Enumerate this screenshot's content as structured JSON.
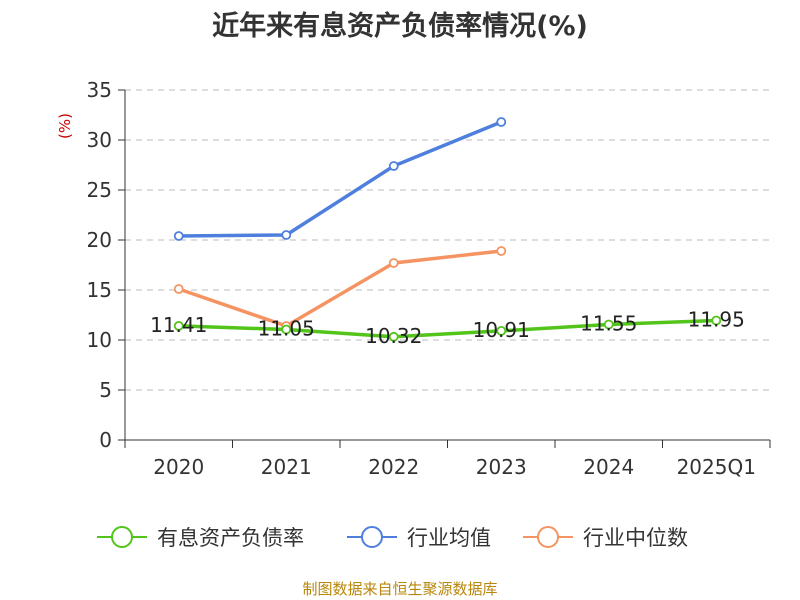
{
  "chart_data": {
    "type": "line",
    "title": "近年来有息资产负债率情况(%)",
    "ylabel": "(%)",
    "xlabel": "",
    "categories": [
      "2020",
      "2021",
      "2022",
      "2023",
      "2024",
      "2025Q1"
    ],
    "ylim": [
      0,
      35
    ],
    "yticks": [
      0,
      5,
      10,
      15,
      20,
      25,
      30,
      35
    ],
    "grid": true,
    "legend_position": "bottom",
    "series": [
      {
        "name": "有息资产负债率",
        "color": "#52c41a",
        "values": [
          11.41,
          11.05,
          10.32,
          10.91,
          11.55,
          11.95
        ],
        "labels": [
          "11.41",
          "11.05",
          "10.32",
          "10.91",
          "11.55",
          "11.95"
        ]
      },
      {
        "name": "行业均值",
        "color": "#4e7fdd",
        "values": [
          20.4,
          20.5,
          27.4,
          31.8,
          null,
          null
        ]
      },
      {
        "name": "行业中位数",
        "color": "#f59462",
        "values": [
          15.1,
          11.4,
          17.7,
          18.9,
          null,
          null
        ]
      }
    ]
  },
  "source": "制图数据来自恒生聚源数据库"
}
